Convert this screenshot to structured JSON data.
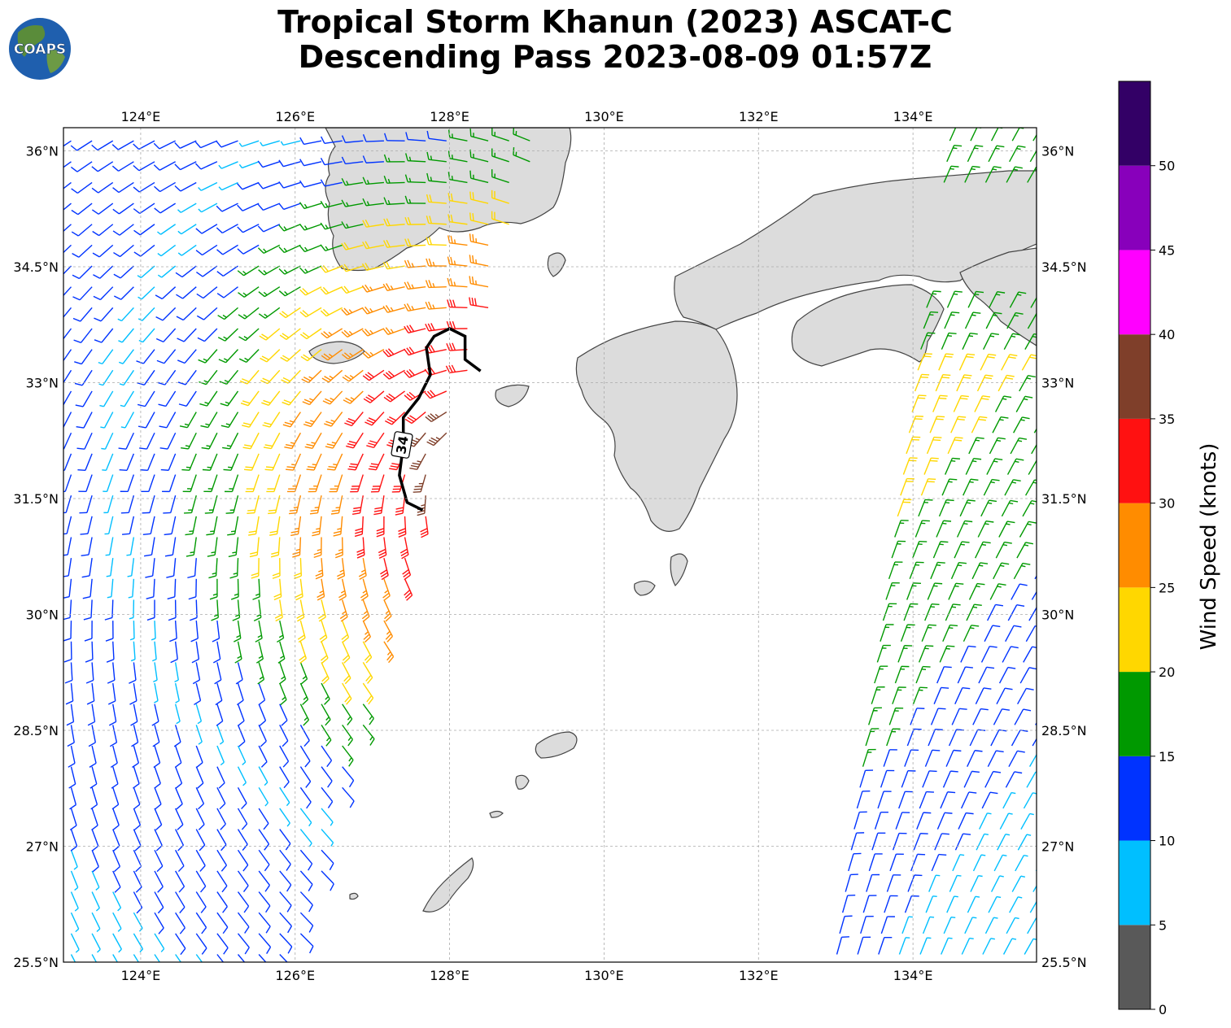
{
  "title_line1": "Tropical Storm Khanun (2023) ASCAT-C",
  "title_line2": "Descending Pass 2023-08-09 01:57Z",
  "logo_text": "COAPS",
  "map": {
    "lon_range": [
      123.0,
      135.6
    ],
    "lat_range": [
      25.5,
      36.3
    ],
    "lon_ticks": [
      124,
      126,
      128,
      130,
      132,
      134
    ],
    "lon_labels": [
      "124°E",
      "126°E",
      "128°E",
      "130°E",
      "132°E",
      "134°E"
    ],
    "lat_ticks": [
      25.5,
      27,
      28.5,
      30,
      31.5,
      33,
      34.5,
      36
    ],
    "lat_labels": [
      "25.5°N",
      "27°N",
      "28.5°N",
      "30°N",
      "31.5°N",
      "33°N",
      "34.5°N",
      "36°N"
    ],
    "contour_label": "34",
    "contour_34kt": [
      [
        128.4,
        33.15
      ],
      [
        128.2,
        33.3
      ],
      [
        128.2,
        33.6
      ],
      [
        128.0,
        33.7
      ],
      [
        127.8,
        33.6
      ],
      [
        127.7,
        33.45
      ],
      [
        127.75,
        33.1
      ],
      [
        127.6,
        32.8
      ],
      [
        127.4,
        32.55
      ],
      [
        127.4,
        32.2
      ],
      [
        127.35,
        31.8
      ],
      [
        127.45,
        31.45
      ],
      [
        127.65,
        31.35
      ]
    ]
  },
  "colorbar": {
    "label": "Wind Speed (knots)",
    "bounds": [
      0,
      5,
      10,
      15,
      20,
      25,
      30,
      35,
      40,
      45,
      50,
      55
    ],
    "tick_labels": [
      "0",
      "5",
      "10",
      "15",
      "20",
      "25",
      "30",
      "35",
      "40",
      "45",
      "50"
    ],
    "colors": [
      "#595959",
      "#00bfff",
      "#0033ff",
      "#009900",
      "#ffd700",
      "#ff8c00",
      "#ff1111",
      "#7f3f2a",
      "#ff00ff",
      "#8800bb",
      "#330066"
    ]
  },
  "land_color": "#dcdcdc",
  "coast_color": "#444444"
}
